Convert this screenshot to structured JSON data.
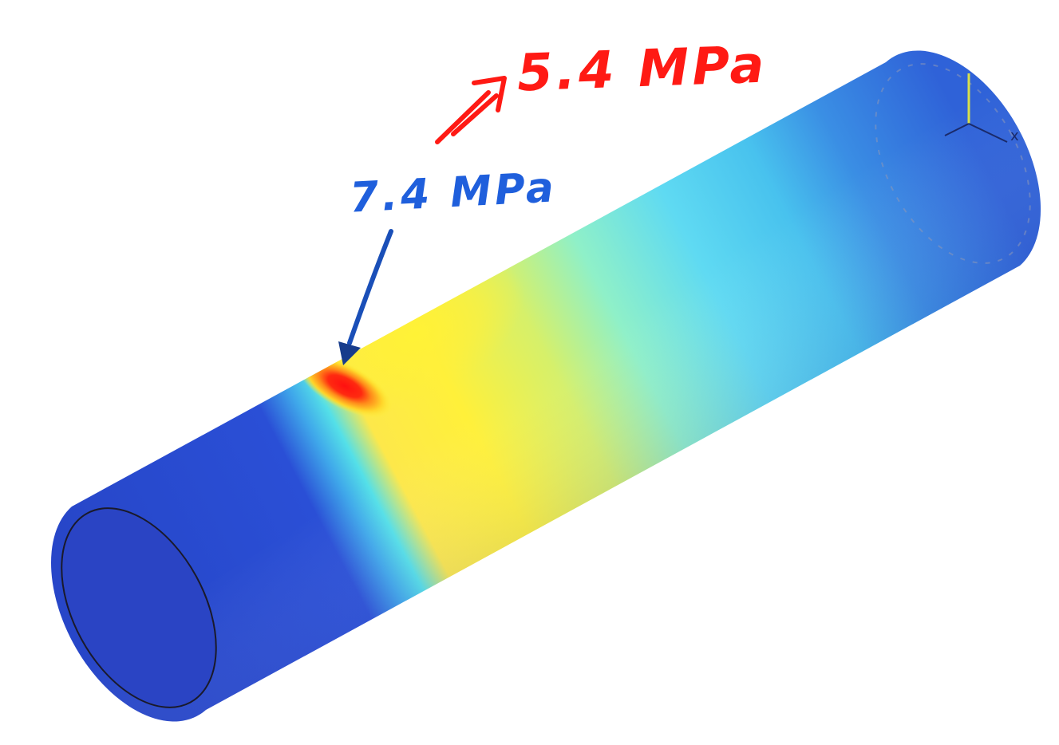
{
  "annotations": {
    "top_label": "5.4 MPa",
    "peak_label": "7.4 MPa"
  },
  "colors": {
    "top_label": "#ff1a14",
    "top_arrow": "#ff1a14",
    "peak_label": "#1f5fdc",
    "peak_arrow": "#1a4fb8",
    "background": "#ffffff",
    "contour_low": "#2a4fd6",
    "contour_mid": "#39c6ee",
    "contour_high": "#fff024",
    "contour_max": "#ff1a14"
  },
  "icons": {
    "top_arrow": "double-arrow-up-right-icon",
    "peak_arrow": "arrow-down-icon",
    "axis_triad": "axis-triad-icon"
  }
}
